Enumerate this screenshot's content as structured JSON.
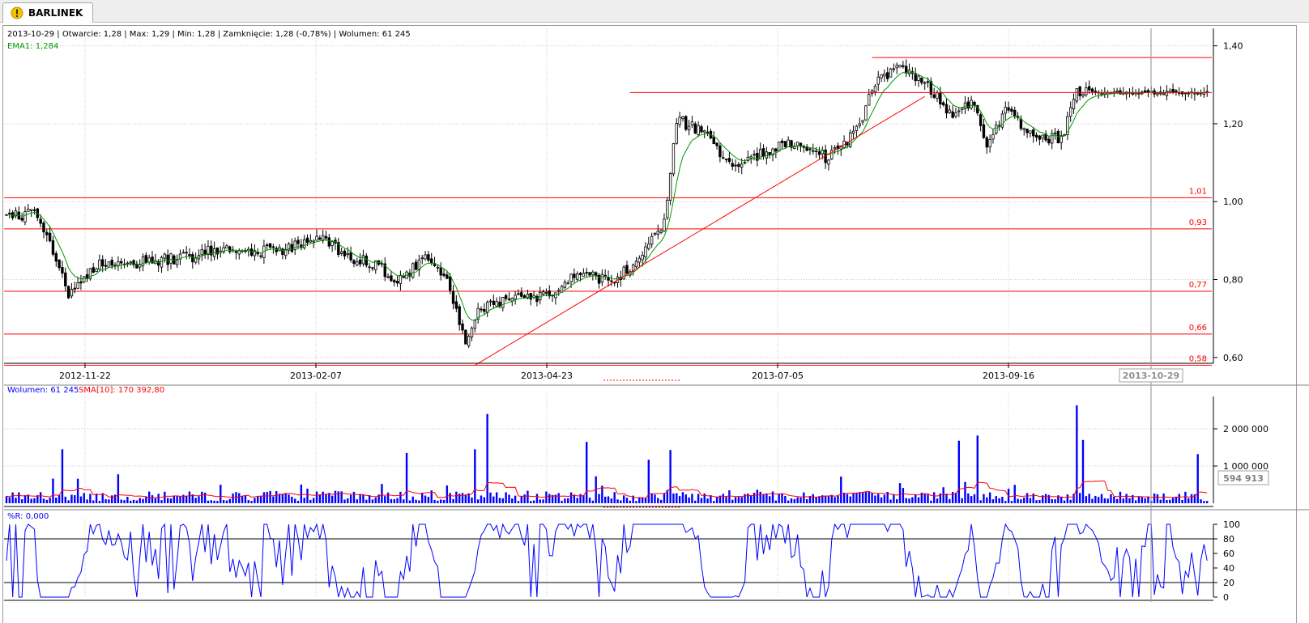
{
  "tab": {
    "title": "BARLINEK",
    "icon": "warning-icon"
  },
  "header": {
    "ohlc_line": "2013-10-29 | Otwarcie: 1,28 | Max: 1,29 | Min: 1,28 | Zamknięcie: 1,28 (-0,78%)  | Wolumen: 61 245",
    "ema_line": "EMA1: 1,284"
  },
  "volume_header": {
    "volume_label": "Wolumen: 61 245",
    "sma_label": "SMA[10]: 170 392,80"
  },
  "wr_header": {
    "label": "%R: 0,000"
  },
  "colors": {
    "candle": "#000000",
    "ema": "#009900",
    "level": "#ff0000",
    "volume": "#0000ff",
    "sma": "#ff0000",
    "wr": "#0000ff",
    "grid": "#c8c8c8"
  },
  "price_axis": {
    "ticks": [
      "1,40",
      "1,20",
      "1,00",
      "0,80",
      "0,60"
    ],
    "tick_values": [
      1.4,
      1.2,
      1.0,
      0.8,
      0.6
    ],
    "ylim": [
      0.585,
      1.445
    ]
  },
  "date_axis": {
    "labels": [
      "2012-11-22",
      "2013-02-07",
      "2013-04-23",
      "2013-07-05",
      "2013-09-16"
    ],
    "cursor_label": "2013-10-29"
  },
  "volume_axis": {
    "ticks": [
      "2 000 000",
      "1 000 000"
    ],
    "tick_values": [
      2000000,
      1000000
    ],
    "ymax": 2870000,
    "cursor_value": "594 913"
  },
  "wr_axis": {
    "ticks": [
      "100",
      "80",
      "60",
      "40",
      "20",
      "0"
    ],
    "tick_values": [
      100,
      80,
      60,
      40,
      20,
      0
    ],
    "levels": [
      80,
      20
    ]
  },
  "levels": [
    {
      "value": 1.01,
      "label": "1,01"
    },
    {
      "value": 0.93,
      "label": "0,93"
    },
    {
      "value": 0.77,
      "label": "0,77"
    },
    {
      "value": 0.66,
      "label": "0,66"
    },
    {
      "value": 0.58,
      "label": "0,58"
    }
  ],
  "chart_data": [
    {
      "type": "candlestick",
      "title": "BARLINEK",
      "x_range": [
        "2012-10-04",
        "2013-11-05"
      ],
      "y_range": [
        0.585,
        1.445
      ],
      "series_keypoints": [
        {
          "bar": 0,
          "close": 0.96
        },
        {
          "bar": 10,
          "close": 0.97
        },
        {
          "bar": 20,
          "close": 0.76
        },
        {
          "bar": 30,
          "close": 0.84
        },
        {
          "bar": 40,
          "close": 0.84
        },
        {
          "bar": 50,
          "close": 0.85
        },
        {
          "bar": 60,
          "close": 0.86
        },
        {
          "bar": 70,
          "close": 0.88
        },
        {
          "bar": 80,
          "close": 0.87
        },
        {
          "bar": 90,
          "close": 0.88
        },
        {
          "bar": 100,
          "close": 0.91
        },
        {
          "bar": 110,
          "close": 0.86
        },
        {
          "bar": 120,
          "close": 0.84
        },
        {
          "bar": 125,
          "close": 0.78
        },
        {
          "bar": 135,
          "close": 0.86
        },
        {
          "bar": 143,
          "close": 0.78
        },
        {
          "bar": 148,
          "close": 0.63
        },
        {
          "bar": 152,
          "close": 0.72
        },
        {
          "bar": 160,
          "close": 0.75
        },
        {
          "bar": 175,
          "close": 0.76
        },
        {
          "bar": 185,
          "close": 0.82
        },
        {
          "bar": 195,
          "close": 0.79
        },
        {
          "bar": 205,
          "close": 0.86
        },
        {
          "bar": 212,
          "close": 0.95
        },
        {
          "bar": 216,
          "close": 1.21
        },
        {
          "bar": 225,
          "close": 1.18
        },
        {
          "bar": 235,
          "close": 1.08
        },
        {
          "bar": 245,
          "close": 1.13
        },
        {
          "bar": 255,
          "close": 1.16
        },
        {
          "bar": 265,
          "close": 1.11
        },
        {
          "bar": 275,
          "close": 1.19
        },
        {
          "bar": 280,
          "close": 1.31
        },
        {
          "bar": 288,
          "close": 1.35
        },
        {
          "bar": 298,
          "close": 1.29
        },
        {
          "bar": 305,
          "close": 1.22
        },
        {
          "bar": 312,
          "close": 1.26
        },
        {
          "bar": 316,
          "close": 1.14
        },
        {
          "bar": 322,
          "close": 1.23
        },
        {
          "bar": 332,
          "close": 1.17
        },
        {
          "bar": 340,
          "close": 1.16
        },
        {
          "bar": 345,
          "close": 1.28
        },
        {
          "bar": 360,
          "close": 1.29
        },
        {
          "bar": 375,
          "close": 1.29
        },
        {
          "bar": 382,
          "close": 1.28
        }
      ],
      "support_line": {
        "from": {
          "bar": 151,
          "value": 0.58
        },
        "to": {
          "bar": 296,
          "value": 1.27
        }
      },
      "resistance_lines": [
        {
          "from_bar": 201,
          "value": 1.28
        },
        {
          "from_bar": 279,
          "value": 1.37
        }
      ],
      "horizontal_levels": [
        1.01,
        0.93,
        0.77,
        0.66,
        0.58
      ],
      "ema_label": "EMA1",
      "ema_value": 1.284,
      "last_bar": {
        "date": "2013-10-29",
        "open": 1.28,
        "high": 1.29,
        "low": 1.28,
        "close": 1.28,
        "change_pct": -0.78,
        "volume": 61245
      }
    },
    {
      "type": "bar",
      "series": [
        {
          "name": "Wolumen",
          "last": 61245,
          "spikes": [
            {
              "bar": 18,
              "value": 1450000
            },
            {
              "bar": 129,
              "value": 1350000
            },
            {
              "bar": 151,
              "value": 1450000
            },
            {
              "bar": 155,
              "value": 2400000
            },
            {
              "bar": 187,
              "value": 1650000
            },
            {
              "bar": 207,
              "value": 1170000
            },
            {
              "bar": 214,
              "value": 1430000
            },
            {
              "bar": 313,
              "value": 1820000
            },
            {
              "bar": 307,
              "value": 1680000
            },
            {
              "bar": 345,
              "value": 2630000
            },
            {
              "bar": 347,
              "value": 1700000
            },
            {
              "bar": 384,
              "value": 1320000
            }
          ]
        },
        {
          "name": "SMA[10]",
          "last": 170392.8
        }
      ],
      "ylim": [
        0,
        2870000
      ]
    },
    {
      "type": "line",
      "series": [
        {
          "name": "%R",
          "last": 0.0
        }
      ],
      "ylim": [
        0,
        100
      ],
      "levels": [
        80,
        20
      ]
    }
  ]
}
